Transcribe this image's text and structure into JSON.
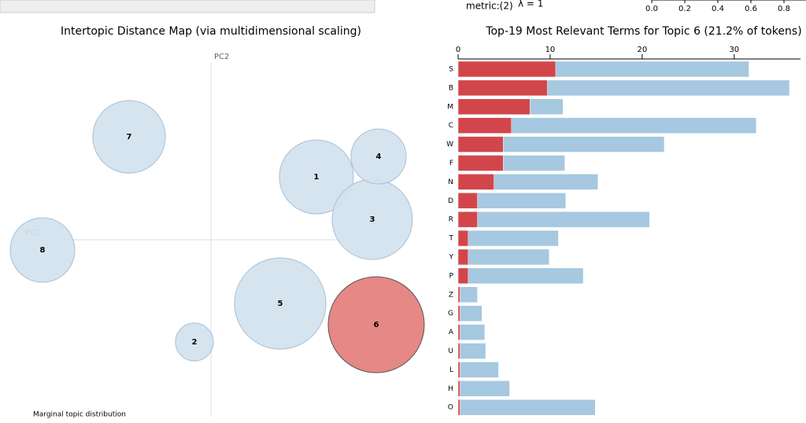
{
  "controls": {
    "metric": "metric:(2)",
    "lambda": "λ = 1",
    "slider": {
      "xlim": [
        0,
        1
      ],
      "xticks": [
        {
          "value": 0,
          "label": "0.0"
        },
        {
          "value": 0.2,
          "label": "0.2"
        },
        {
          "value": 0.4,
          "label": "0.4"
        },
        {
          "value": 0.6,
          "label": "0.6"
        },
        {
          "value": 0.8,
          "label": "0.8"
        }
      ]
    }
  },
  "chart_data": [
    {
      "type": "scatter",
      "title": "Intertopic Distance Map (via multidimensional scaling)",
      "x_label": "PC1",
      "y_label": "PC2",
      "annotation": "Marginal topic distribution",
      "labels": [
        "1",
        "2",
        "3",
        "4",
        "5",
        "6",
        "7",
        "8"
      ],
      "x": [
        0.134,
        -0.021,
        0.205,
        0.213,
        0.088,
        0.21,
        -0.104,
        -0.214
      ],
      "values": [
        0.08,
        -0.13,
        0.026,
        0.106,
        -0.081,
        -0.108,
        0.131,
        -0.013
      ],
      "sizes": [
        12.6,
        3.3,
        14.8,
        7.0,
        19.2,
        21.2,
        12.1,
        9.6
      ],
      "colors": [
        "#d2e1ee",
        "#d2e1ee",
        "#d2e1ee",
        "#d2e1ee",
        "#d2e1ee",
        "#e37b78",
        "#d2e1ee",
        "#d2e1ee"
      ],
      "xlim": [
        -0.248,
        0.234
      ],
      "ylim": [
        -0.225,
        0.225
      ]
    },
    {
      "type": "hbar",
      "title": "Top-19 Most Relevant Terms for Topic 6 (21.2% of tokens)",
      "categories": [
        "S",
        "B",
        "M",
        "C",
        "W",
        "F",
        "N",
        "D",
        "R",
        "T",
        "Y",
        "P",
        "Z",
        "G",
        "A",
        "U",
        "L",
        "H",
        "O"
      ],
      "series": [
        {
          "color": "#a6c8e0",
          "values": [
            31.6,
            36.0,
            11.4,
            32.4,
            22.4,
            11.6,
            15.2,
            11.7,
            20.8,
            10.9,
            9.9,
            13.6,
            2.1,
            2.6,
            2.9,
            3.0,
            4.4,
            5.6,
            14.9
          ]
        },
        {
          "color": "#d2464b",
          "values": [
            10.6,
            9.7,
            7.8,
            5.8,
            4.9,
            4.9,
            3.9,
            2.1,
            2.1,
            1.1,
            1.1,
            1.1,
            0.2,
            0.2,
            0.2,
            0.2,
            0.2,
            0.2,
            0.2
          ]
        }
      ],
      "xlim": [
        0,
        37.2
      ],
      "xticks": [
        0,
        10,
        20,
        30
      ]
    }
  ]
}
